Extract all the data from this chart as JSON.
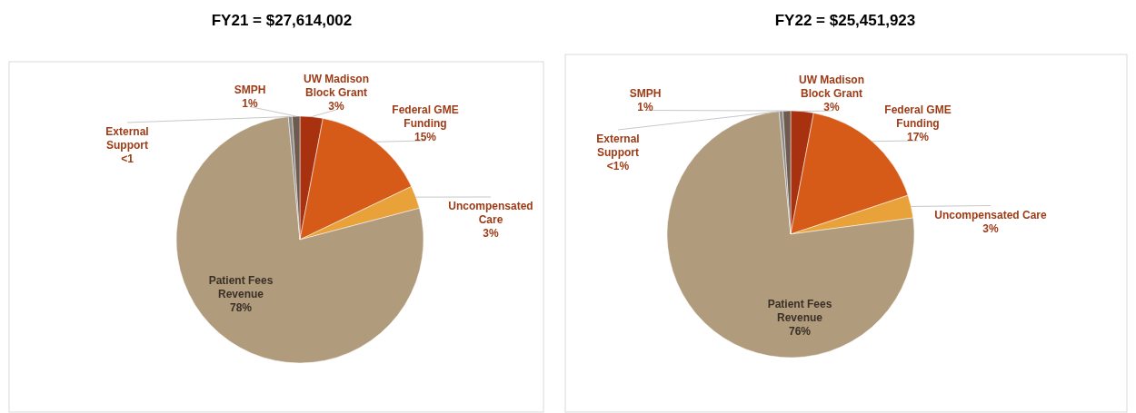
{
  "chart_data": [
    {
      "type": "pie",
      "title": "FY21 = $27,614,002",
      "categories": [
        "UW Madison Block Grant",
        "Federal GME Funding",
        "Uncompensated Care",
        "Patient Fees Revenue",
        "External Support",
        "SMPH"
      ],
      "values": [
        3,
        15,
        3,
        78,
        0.5,
        1
      ],
      "colors": [
        "#a8320f",
        "#d65b19",
        "#e9a23a",
        "#b09b7c",
        "#8c8a87",
        "#6e5a4e"
      ],
      "value_labels": [
        "3%",
        "15%",
        "3%",
        "78%",
        "<1",
        "1%"
      ]
    },
    {
      "type": "pie",
      "title": "FY22 = $25,451,923",
      "categories": [
        "UW Madison Block Grant",
        "Federal GME Funding",
        "Uncompensated Care",
        "Patient Fees Revenue",
        "External Support",
        "SMPH"
      ],
      "values": [
        3,
        17,
        3,
        76,
        0.5,
        1
      ],
      "colors": [
        "#a8320f",
        "#d65b19",
        "#e9a23a",
        "#b09b7c",
        "#8c8a87",
        "#6e5a4e"
      ],
      "value_labels": [
        "3%",
        "17%",
        "3%",
        "76%",
        "<1%",
        "1%"
      ]
    }
  ]
}
